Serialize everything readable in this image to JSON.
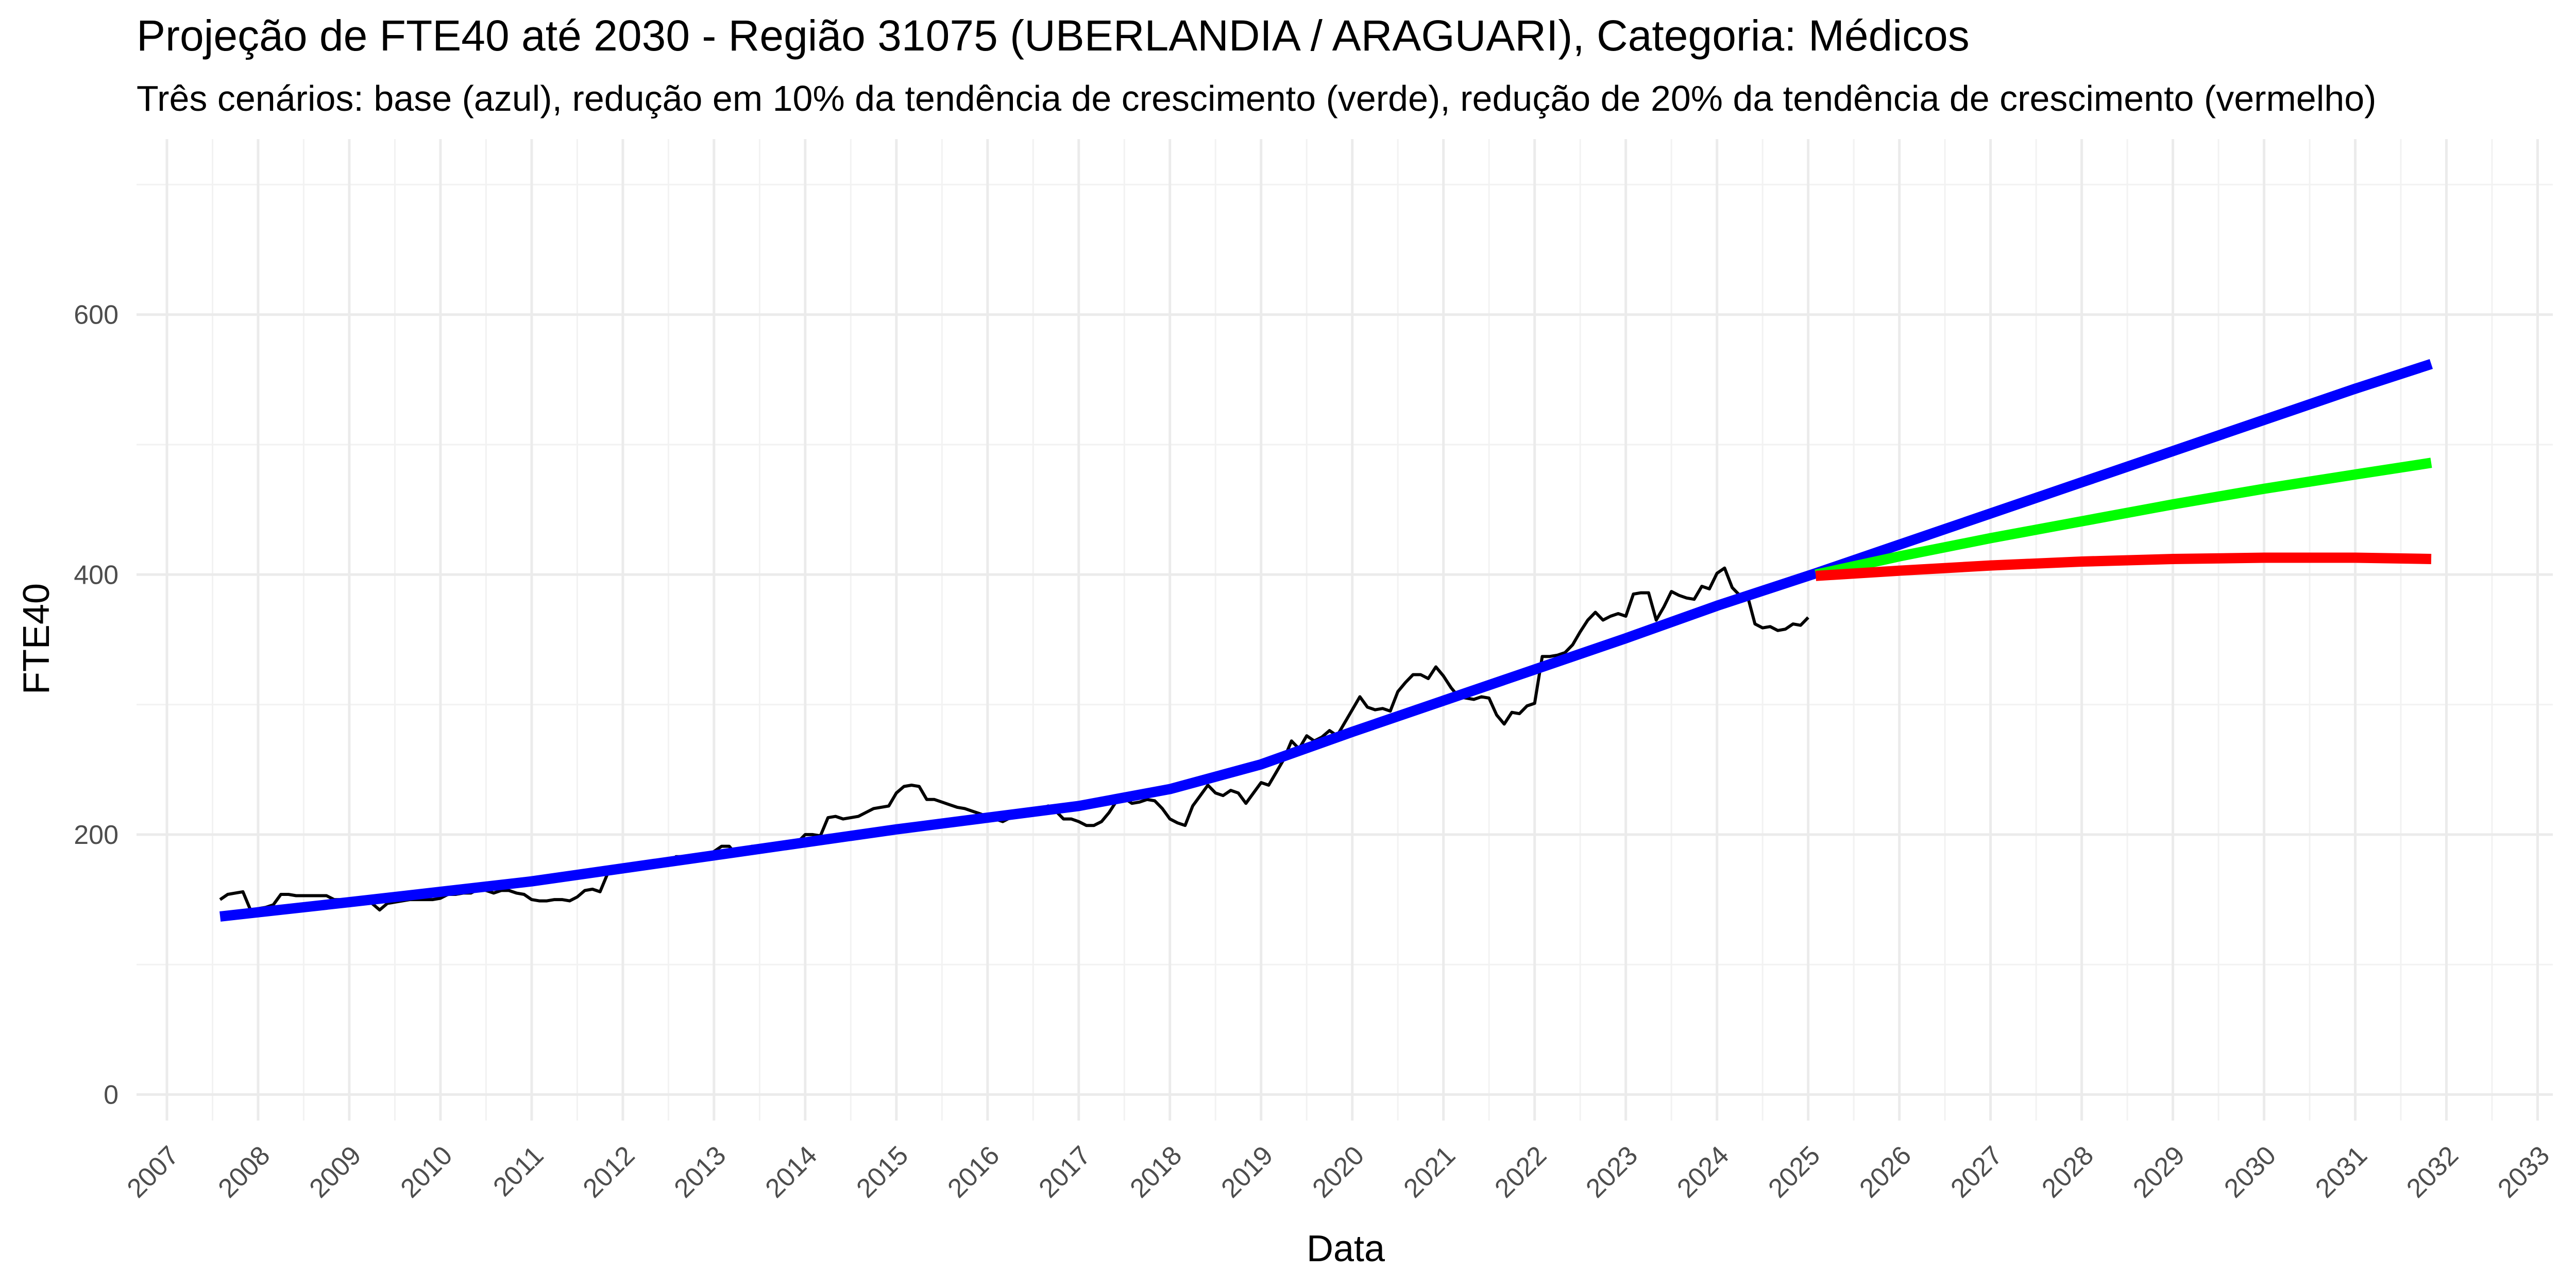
{
  "chart_data": {
    "type": "line",
    "title": "Projeção de FTE40 até 2030 - Região 31075 (UBERLANDIA / ARAGUARI), Categoria: Médicos",
    "subtitle": "Três cenários: base (azul), redução em 10% da tendência de crescimento (verde), redução de 20% da tendência de crescimento (vermelho)",
    "xlabel": "Data",
    "ylabel": "FTE40",
    "xlim": [
      "2006-09-01",
      "2033-03-01"
    ],
    "ylim": [
      -20,
      735
    ],
    "x_ticks": [
      "2007",
      "2008",
      "2009",
      "2010",
      "2011",
      "2012",
      "2013",
      "2014",
      "2015",
      "2016",
      "2017",
      "2018",
      "2019",
      "2020",
      "2021",
      "2022",
      "2023",
      "2024",
      "2025",
      "2026",
      "2027",
      "2028",
      "2029",
      "2030",
      "2031",
      "2032",
      "2033"
    ],
    "y_ticks": [
      0,
      200,
      400,
      600
    ],
    "grid": true,
    "legend": "none",
    "series": [
      {
        "color": "#000000",
        "width": 6,
        "points": [
          [
            "2007-08-01",
            150
          ],
          [
            "2007-09-01",
            154
          ],
          [
            "2007-10-01",
            155
          ],
          [
            "2007-11-01",
            156
          ],
          [
            "2007-12-01",
            142
          ],
          [
            "2008-01-01",
            143
          ],
          [
            "2008-02-01",
            144
          ],
          [
            "2008-03-01",
            146
          ],
          [
            "2008-04-01",
            154
          ],
          [
            "2008-05-01",
            154
          ],
          [
            "2008-06-01",
            153
          ],
          [
            "2008-07-01",
            153
          ],
          [
            "2008-08-01",
            153
          ],
          [
            "2008-09-01",
            153
          ],
          [
            "2008-10-01",
            153
          ],
          [
            "2008-11-01",
            150
          ],
          [
            "2008-12-01",
            150
          ],
          [
            "2009-01-01",
            150
          ],
          [
            "2009-02-01",
            148
          ],
          [
            "2009-03-01",
            148
          ],
          [
            "2009-04-01",
            147
          ],
          [
            "2009-05-01",
            142
          ],
          [
            "2009-06-01",
            147
          ],
          [
            "2009-07-01",
            148
          ],
          [
            "2009-08-01",
            149
          ],
          [
            "2009-09-01",
            150
          ],
          [
            "2009-10-01",
            150
          ],
          [
            "2009-11-01",
            150
          ],
          [
            "2009-12-01",
            150
          ],
          [
            "2010-01-01",
            151
          ],
          [
            "2010-02-01",
            154
          ],
          [
            "2010-03-01",
            154
          ],
          [
            "2010-04-01",
            155
          ],
          [
            "2010-05-01",
            155
          ],
          [
            "2010-06-01",
            158
          ],
          [
            "2010-07-01",
            157
          ],
          [
            "2010-08-01",
            155
          ],
          [
            "2010-09-01",
            157
          ],
          [
            "2010-10-01",
            157
          ],
          [
            "2010-11-01",
            155
          ],
          [
            "2010-12-01",
            154
          ],
          [
            "2011-01-01",
            150
          ],
          [
            "2011-02-01",
            149
          ],
          [
            "2011-03-01",
            149
          ],
          [
            "2011-04-01",
            150
          ],
          [
            "2011-05-01",
            150
          ],
          [
            "2011-06-01",
            149
          ],
          [
            "2011-07-01",
            152
          ],
          [
            "2011-08-01",
            157
          ],
          [
            "2011-09-01",
            158
          ],
          [
            "2011-10-01",
            156
          ],
          [
            "2011-11-01",
            170
          ],
          [
            "2011-12-01",
            172
          ],
          [
            "2012-01-01",
            173
          ],
          [
            "2012-02-01",
            174
          ],
          [
            "2012-03-01",
            174
          ],
          [
            "2012-04-01",
            176
          ],
          [
            "2012-05-01",
            177
          ],
          [
            "2012-06-01",
            178
          ],
          [
            "2012-07-01",
            178
          ],
          [
            "2012-08-01",
            183
          ],
          [
            "2012-09-01",
            183
          ],
          [
            "2012-10-01",
            182
          ],
          [
            "2012-11-01",
            183
          ],
          [
            "2012-12-01",
            183
          ],
          [
            "2013-01-01",
            187
          ],
          [
            "2013-02-01",
            191
          ],
          [
            "2013-03-01",
            191
          ],
          [
            "2013-04-01",
            184
          ],
          [
            "2013-05-01",
            186
          ],
          [
            "2013-06-01",
            191
          ],
          [
            "2013-07-01",
            190
          ],
          [
            "2013-08-01",
            188
          ],
          [
            "2013-09-01",
            189
          ],
          [
            "2013-10-01",
            193
          ],
          [
            "2013-11-01",
            195
          ],
          [
            "2013-12-01",
            194
          ],
          [
            "2014-01-01",
            200
          ],
          [
            "2014-02-01",
            200
          ],
          [
            "2014-03-01",
            199
          ],
          [
            "2014-04-01",
            213
          ],
          [
            "2014-05-01",
            214
          ],
          [
            "2014-06-01",
            212
          ],
          [
            "2014-07-01",
            213
          ],
          [
            "2014-08-01",
            214
          ],
          [
            "2014-09-01",
            217
          ],
          [
            "2014-10-01",
            220
          ],
          [
            "2014-11-01",
            221
          ],
          [
            "2014-12-01",
            222
          ],
          [
            "2015-01-01",
            232
          ],
          [
            "2015-02-01",
            237
          ],
          [
            "2015-03-01",
            238
          ],
          [
            "2015-04-01",
            237
          ],
          [
            "2015-05-01",
            227
          ],
          [
            "2015-06-01",
            227
          ],
          [
            "2015-07-01",
            225
          ],
          [
            "2015-08-01",
            223
          ],
          [
            "2015-09-01",
            221
          ],
          [
            "2015-10-01",
            220
          ],
          [
            "2015-11-01",
            218
          ],
          [
            "2015-12-01",
            216
          ],
          [
            "2016-01-01",
            214
          ],
          [
            "2016-02-01",
            212
          ],
          [
            "2016-03-01",
            210
          ],
          [
            "2016-04-01",
            213
          ],
          [
            "2016-05-01",
            215
          ],
          [
            "2016-06-01",
            216
          ],
          [
            "2016-07-01",
            218
          ],
          [
            "2016-08-01",
            220
          ],
          [
            "2016-09-01",
            222
          ],
          [
            "2016-10-01",
            218
          ],
          [
            "2016-11-01",
            212
          ],
          [
            "2016-12-01",
            212
          ],
          [
            "2017-01-01",
            210
          ],
          [
            "2017-02-01",
            207
          ],
          [
            "2017-03-01",
            207
          ],
          [
            "2017-04-01",
            210
          ],
          [
            "2017-05-01",
            217
          ],
          [
            "2017-06-01",
            226
          ],
          [
            "2017-07-01",
            228
          ],
          [
            "2017-08-01",
            224
          ],
          [
            "2017-09-01",
            225
          ],
          [
            "2017-10-01",
            227
          ],
          [
            "2017-11-01",
            226
          ],
          [
            "2017-12-01",
            220
          ],
          [
            "2018-01-01",
            212
          ],
          [
            "2018-02-01",
            209
          ],
          [
            "2018-03-01",
            207
          ],
          [
            "2018-04-01",
            222
          ],
          [
            "2018-05-01",
            230
          ],
          [
            "2018-06-01",
            238
          ],
          [
            "2018-07-01",
            232
          ],
          [
            "2018-08-01",
            230
          ],
          [
            "2018-09-01",
            234
          ],
          [
            "2018-10-01",
            232
          ],
          [
            "2018-11-01",
            224
          ],
          [
            "2018-12-01",
            232
          ],
          [
            "2019-01-01",
            240
          ],
          [
            "2019-02-01",
            238
          ],
          [
            "2019-03-01",
            248
          ],
          [
            "2019-04-01",
            258
          ],
          [
            "2019-05-01",
            272
          ],
          [
            "2019-06-01",
            266
          ],
          [
            "2019-07-01",
            276
          ],
          [
            "2019-08-01",
            272
          ],
          [
            "2019-09-01",
            275
          ],
          [
            "2019-10-01",
            280
          ],
          [
            "2019-11-01",
            276
          ],
          [
            "2019-12-01",
            286
          ],
          [
            "2020-01-01",
            296
          ],
          [
            "2020-02-01",
            306
          ],
          [
            "2020-03-01",
            298
          ],
          [
            "2020-04-01",
            296
          ],
          [
            "2020-05-01",
            297
          ],
          [
            "2020-06-01",
            295
          ],
          [
            "2020-07-01",
            310
          ],
          [
            "2020-08-01",
            317
          ],
          [
            "2020-09-01",
            323
          ],
          [
            "2020-10-01",
            323
          ],
          [
            "2020-11-01",
            320
          ],
          [
            "2020-12-01",
            329
          ],
          [
            "2021-01-01",
            322
          ],
          [
            "2021-02-01",
            313
          ],
          [
            "2021-03-01",
            306
          ],
          [
            "2021-04-01",
            305
          ],
          [
            "2021-05-01",
            304
          ],
          [
            "2021-06-01",
            306
          ],
          [
            "2021-07-01",
            305
          ],
          [
            "2021-08-01",
            292
          ],
          [
            "2021-09-01",
            285
          ],
          [
            "2021-10-01",
            294
          ],
          [
            "2021-11-01",
            293
          ],
          [
            "2021-12-01",
            299
          ],
          [
            "2022-01-01",
            301
          ],
          [
            "2022-02-01",
            337
          ],
          [
            "2022-03-01",
            337
          ],
          [
            "2022-04-01",
            338
          ],
          [
            "2022-05-01",
            340
          ],
          [
            "2022-06-01",
            346
          ],
          [
            "2022-07-01",
            356
          ],
          [
            "2022-08-01",
            365
          ],
          [
            "2022-09-01",
            371
          ],
          [
            "2022-10-01",
            365
          ],
          [
            "2022-11-01",
            368
          ],
          [
            "2022-12-01",
            370
          ],
          [
            "2023-01-01",
            368
          ],
          [
            "2023-02-01",
            385
          ],
          [
            "2023-03-01",
            386
          ],
          [
            "2023-04-01",
            386
          ],
          [
            "2023-05-01",
            365
          ],
          [
            "2023-06-01",
            375
          ],
          [
            "2023-07-01",
            387
          ],
          [
            "2023-08-01",
            384
          ],
          [
            "2023-09-01",
            382
          ],
          [
            "2023-10-01",
            381
          ],
          [
            "2023-11-01",
            391
          ],
          [
            "2023-12-01",
            389
          ],
          [
            "2024-01-01",
            401
          ],
          [
            "2024-02-01",
            405
          ],
          [
            "2024-03-01",
            390
          ],
          [
            "2024-04-01",
            384
          ],
          [
            "2024-05-01",
            384
          ],
          [
            "2024-06-01",
            362
          ],
          [
            "2024-07-01",
            359
          ],
          [
            "2024-08-01",
            360
          ],
          [
            "2024-09-01",
            357
          ],
          [
            "2024-10-01",
            358
          ],
          [
            "2024-11-01",
            362
          ],
          [
            "2024-12-01",
            361
          ],
          [
            "2025-01-01",
            367
          ]
        ]
      },
      {
        "color": "#0000ff",
        "width": 20,
        "points": [
          [
            "2007-08-01",
            137
          ],
          [
            "2009-01-01",
            148
          ],
          [
            "2011-01-01",
            164
          ],
          [
            "2013-01-01",
            184
          ],
          [
            "2015-01-01",
            204
          ],
          [
            "2017-01-01",
            222
          ],
          [
            "2018-01-01",
            235
          ],
          [
            "2019-01-01",
            254
          ],
          [
            "2020-01-01",
            279
          ],
          [
            "2021-01-01",
            303
          ],
          [
            "2022-01-01",
            327
          ],
          [
            "2023-01-01",
            351
          ],
          [
            "2024-01-01",
            376
          ],
          [
            "2025-02-01",
            401
          ],
          [
            "2028-01-01",
            471
          ],
          [
            "2031-01-01",
            543
          ],
          [
            "2031-11-01",
            562
          ]
        ]
      },
      {
        "color": "#00ff00",
        "width": 20,
        "points": [
          [
            "2025-02-01",
            400
          ],
          [
            "2026-01-01",
            414
          ],
          [
            "2027-01-01",
            428
          ],
          [
            "2028-01-01",
            441
          ],
          [
            "2029-01-01",
            454
          ],
          [
            "2030-01-01",
            466
          ],
          [
            "2031-01-01",
            477
          ],
          [
            "2031-11-01",
            486
          ]
        ]
      },
      {
        "color": "#ff0000",
        "width": 20,
        "points": [
          [
            "2025-02-01",
            399
          ],
          [
            "2026-01-01",
            403
          ],
          [
            "2027-01-01",
            407
          ],
          [
            "2028-01-01",
            410
          ],
          [
            "2029-01-01",
            412
          ],
          [
            "2030-01-01",
            413
          ],
          [
            "2031-01-01",
            413
          ],
          [
            "2031-11-01",
            412
          ]
        ]
      }
    ]
  }
}
